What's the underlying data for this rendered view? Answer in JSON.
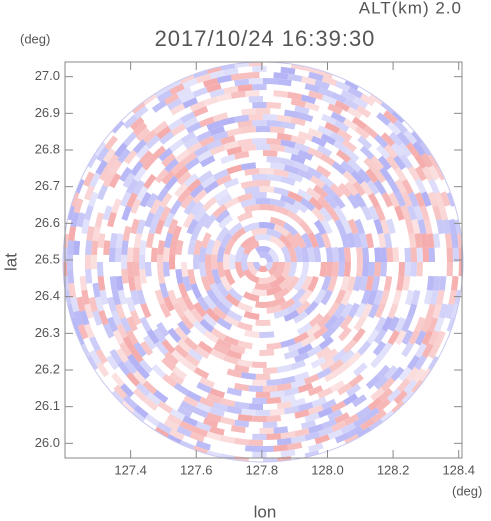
{
  "chart_data": {
    "type": "radar-ppi",
    "title": "2017/10/24 16:39:30",
    "annotation": "ALT(km) 2.0",
    "x_label": "lon",
    "y_label": "lat",
    "x_unit": "(deg)",
    "y_unit": "(deg)",
    "xlim": [
      127.2,
      128.41
    ],
    "ylim": [
      25.96,
      27.04
    ],
    "xticks": [
      127.4,
      127.6,
      127.8,
      {
        "value": 128.0,
        "label": "128.0"
      },
      128.2,
      128.4
    ],
    "yticks": [
      {
        "value": 26.0,
        "label": "26.0"
      },
      26.1,
      26.2,
      26.3,
      26.4,
      26.5,
      26.6,
      26.7,
      26.8,
      26.9,
      {
        "value": 27.0,
        "label": "27.0"
      }
    ]
  }
}
